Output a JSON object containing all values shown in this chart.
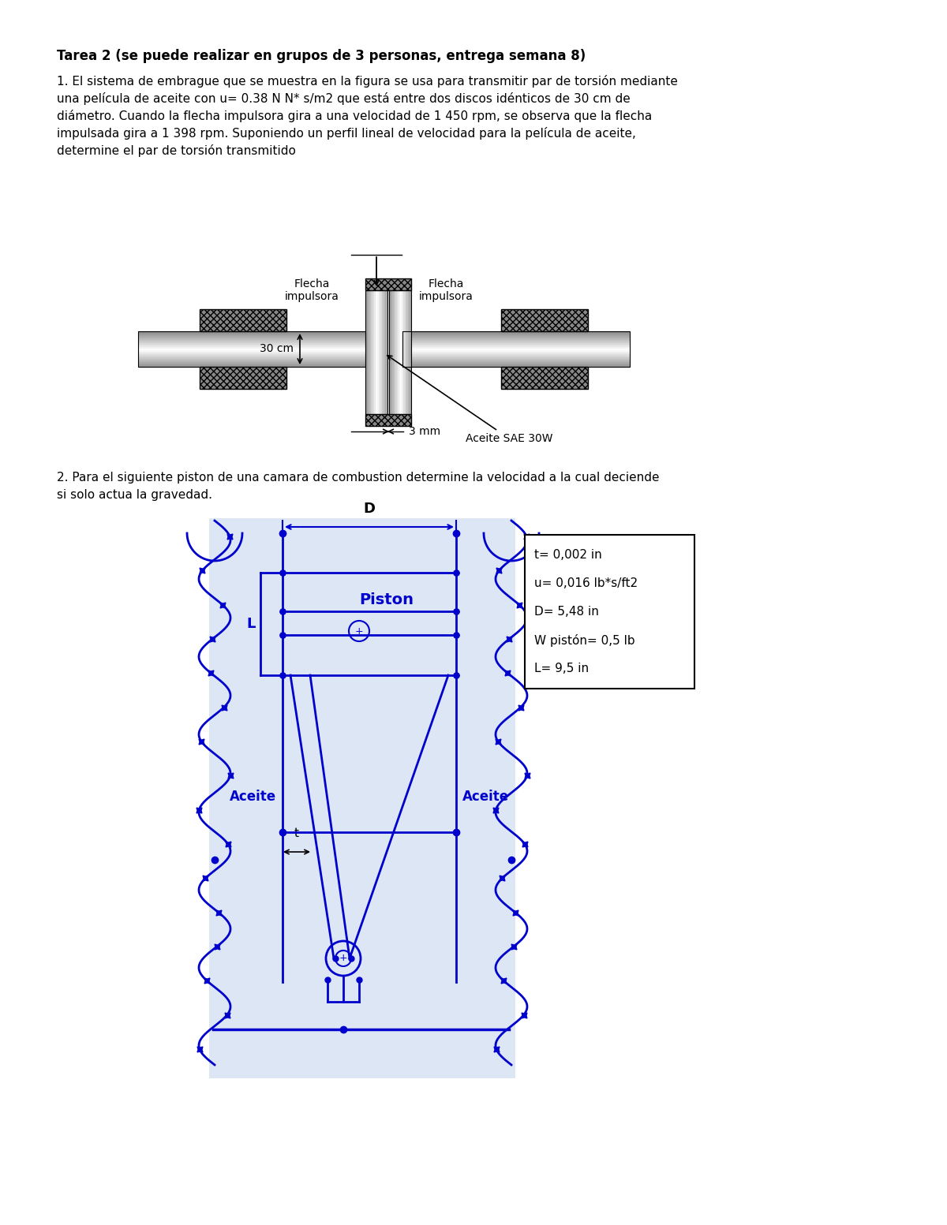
{
  "title": "Tarea 2 (se puede realizar en grupos de 3 personas, entrega semana 8)",
  "paragraph1_lines": [
    "1. El sistema de embrague que se muestra en la figura se usa para transmitir par de torsión mediante",
    "una película de aceite con u= 0.38 N N* s/m2 que está entre dos discos idénticos de 30 cm de",
    "diámetro. Cuando la flecha impulsora gira a una velocidad de 1 450 rpm, se observa que la flecha",
    "impulsada gira a 1 398 rpm. Suponiendo un perfil lineal de velocidad para la película de aceite,",
    "determine el par de torsión transmitido"
  ],
  "paragraph2_lines": [
    "2. Para el siguiente piston de una camara de combustion determine la velocidad a la cual deciende",
    "si solo actua la gravedad."
  ],
  "box_params": [
    "t= 0,002 in",
    "u= 0,016 lb*s/ft2",
    "D= 5,48 in",
    "W pistón= 0,5 lb",
    "L= 9,5 in"
  ],
  "blue_color": "#0000CC",
  "light_blue_bg": "#dce6f5"
}
